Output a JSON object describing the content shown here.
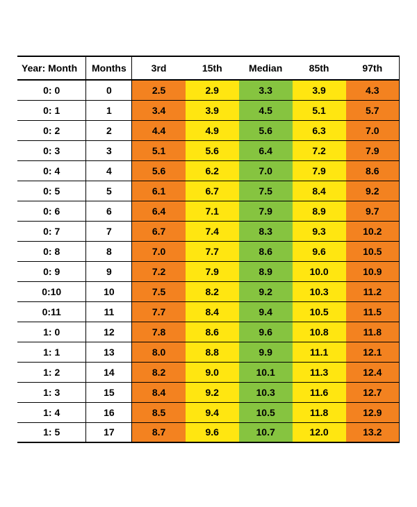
{
  "table": {
    "columns": [
      "Year: Month",
      "Months",
      "3rd",
      "15th",
      "Median",
      "85th",
      "97th"
    ],
    "column_widths_pct": [
      18,
      12,
      14,
      14,
      14,
      14,
      14
    ],
    "col_bg": [
      "#ffffff",
      "#ffffff",
      "#f38220",
      "#ffe611",
      "#86c440",
      "#ffe611",
      "#f38220"
    ],
    "fontsize": 14,
    "font_weight": "bold",
    "border_color": "#000000",
    "rows": [
      {
        "year_month": "0:  0",
        "months": "0",
        "p3": "2.5",
        "p15": "2.9",
        "median": "3.3",
        "p85": "3.9",
        "p97": "4.3"
      },
      {
        "year_month": "0:  1",
        "months": "1",
        "p3": "3.4",
        "p15": "3.9",
        "median": "4.5",
        "p85": "5.1",
        "p97": "5.7"
      },
      {
        "year_month": "0:  2",
        "months": "2",
        "p3": "4.4",
        "p15": "4.9",
        "median": "5.6",
        "p85": "6.3",
        "p97": "7.0"
      },
      {
        "year_month": "0:  3",
        "months": "3",
        "p3": "5.1",
        "p15": "5.6",
        "median": "6.4",
        "p85": "7.2",
        "p97": "7.9"
      },
      {
        "year_month": "0:  4",
        "months": "4",
        "p3": "5.6",
        "p15": "6.2",
        "median": "7.0",
        "p85": "7.9",
        "p97": "8.6"
      },
      {
        "year_month": "0:  5",
        "months": "5",
        "p3": "6.1",
        "p15": "6.7",
        "median": "7.5",
        "p85": "8.4",
        "p97": "9.2"
      },
      {
        "year_month": "0:  6",
        "months": "6",
        "p3": "6.4",
        "p15": "7.1",
        "median": "7.9",
        "p85": "8.9",
        "p97": "9.7"
      },
      {
        "year_month": "0:  7",
        "months": "7",
        "p3": "6.7",
        "p15": "7.4",
        "median": "8.3",
        "p85": "9.3",
        "p97": "10.2"
      },
      {
        "year_month": "0:  8",
        "months": "8",
        "p3": "7.0",
        "p15": "7.7",
        "median": "8.6",
        "p85": "9.6",
        "p97": "10.5"
      },
      {
        "year_month": "0:  9",
        "months": "9",
        "p3": "7.2",
        "p15": "7.9",
        "median": "8.9",
        "p85": "10.0",
        "p97": "10.9"
      },
      {
        "year_month": "0:10",
        "months": "10",
        "p3": "7.5",
        "p15": "8.2",
        "median": "9.2",
        "p85": "10.3",
        "p97": "11.2"
      },
      {
        "year_month": "0:11",
        "months": "11",
        "p3": "7.7",
        "p15": "8.4",
        "median": "9.4",
        "p85": "10.5",
        "p97": "11.5"
      },
      {
        "year_month": "1:  0",
        "months": "12",
        "p3": "7.8",
        "p15": "8.6",
        "median": "9.6",
        "p85": "10.8",
        "p97": "11.8"
      },
      {
        "year_month": "1:  1",
        "months": "13",
        "p3": "8.0",
        "p15": "8.8",
        "median": "9.9",
        "p85": "11.1",
        "p97": "12.1"
      },
      {
        "year_month": "1:  2",
        "months": "14",
        "p3": "8.2",
        "p15": "9.0",
        "median": "10.1",
        "p85": "11.3",
        "p97": "12.4"
      },
      {
        "year_month": "1:  3",
        "months": "15",
        "p3": "8.4",
        "p15": "9.2",
        "median": "10.3",
        "p85": "11.6",
        "p97": "12.7"
      },
      {
        "year_month": "1:  4",
        "months": "16",
        "p3": "8.5",
        "p15": "9.4",
        "median": "10.5",
        "p85": "11.8",
        "p97": "12.9"
      },
      {
        "year_month": "1:  5",
        "months": "17",
        "p3": "8.7",
        "p15": "9.6",
        "median": "10.7",
        "p85": "12.0",
        "p97": "13.2"
      }
    ]
  }
}
